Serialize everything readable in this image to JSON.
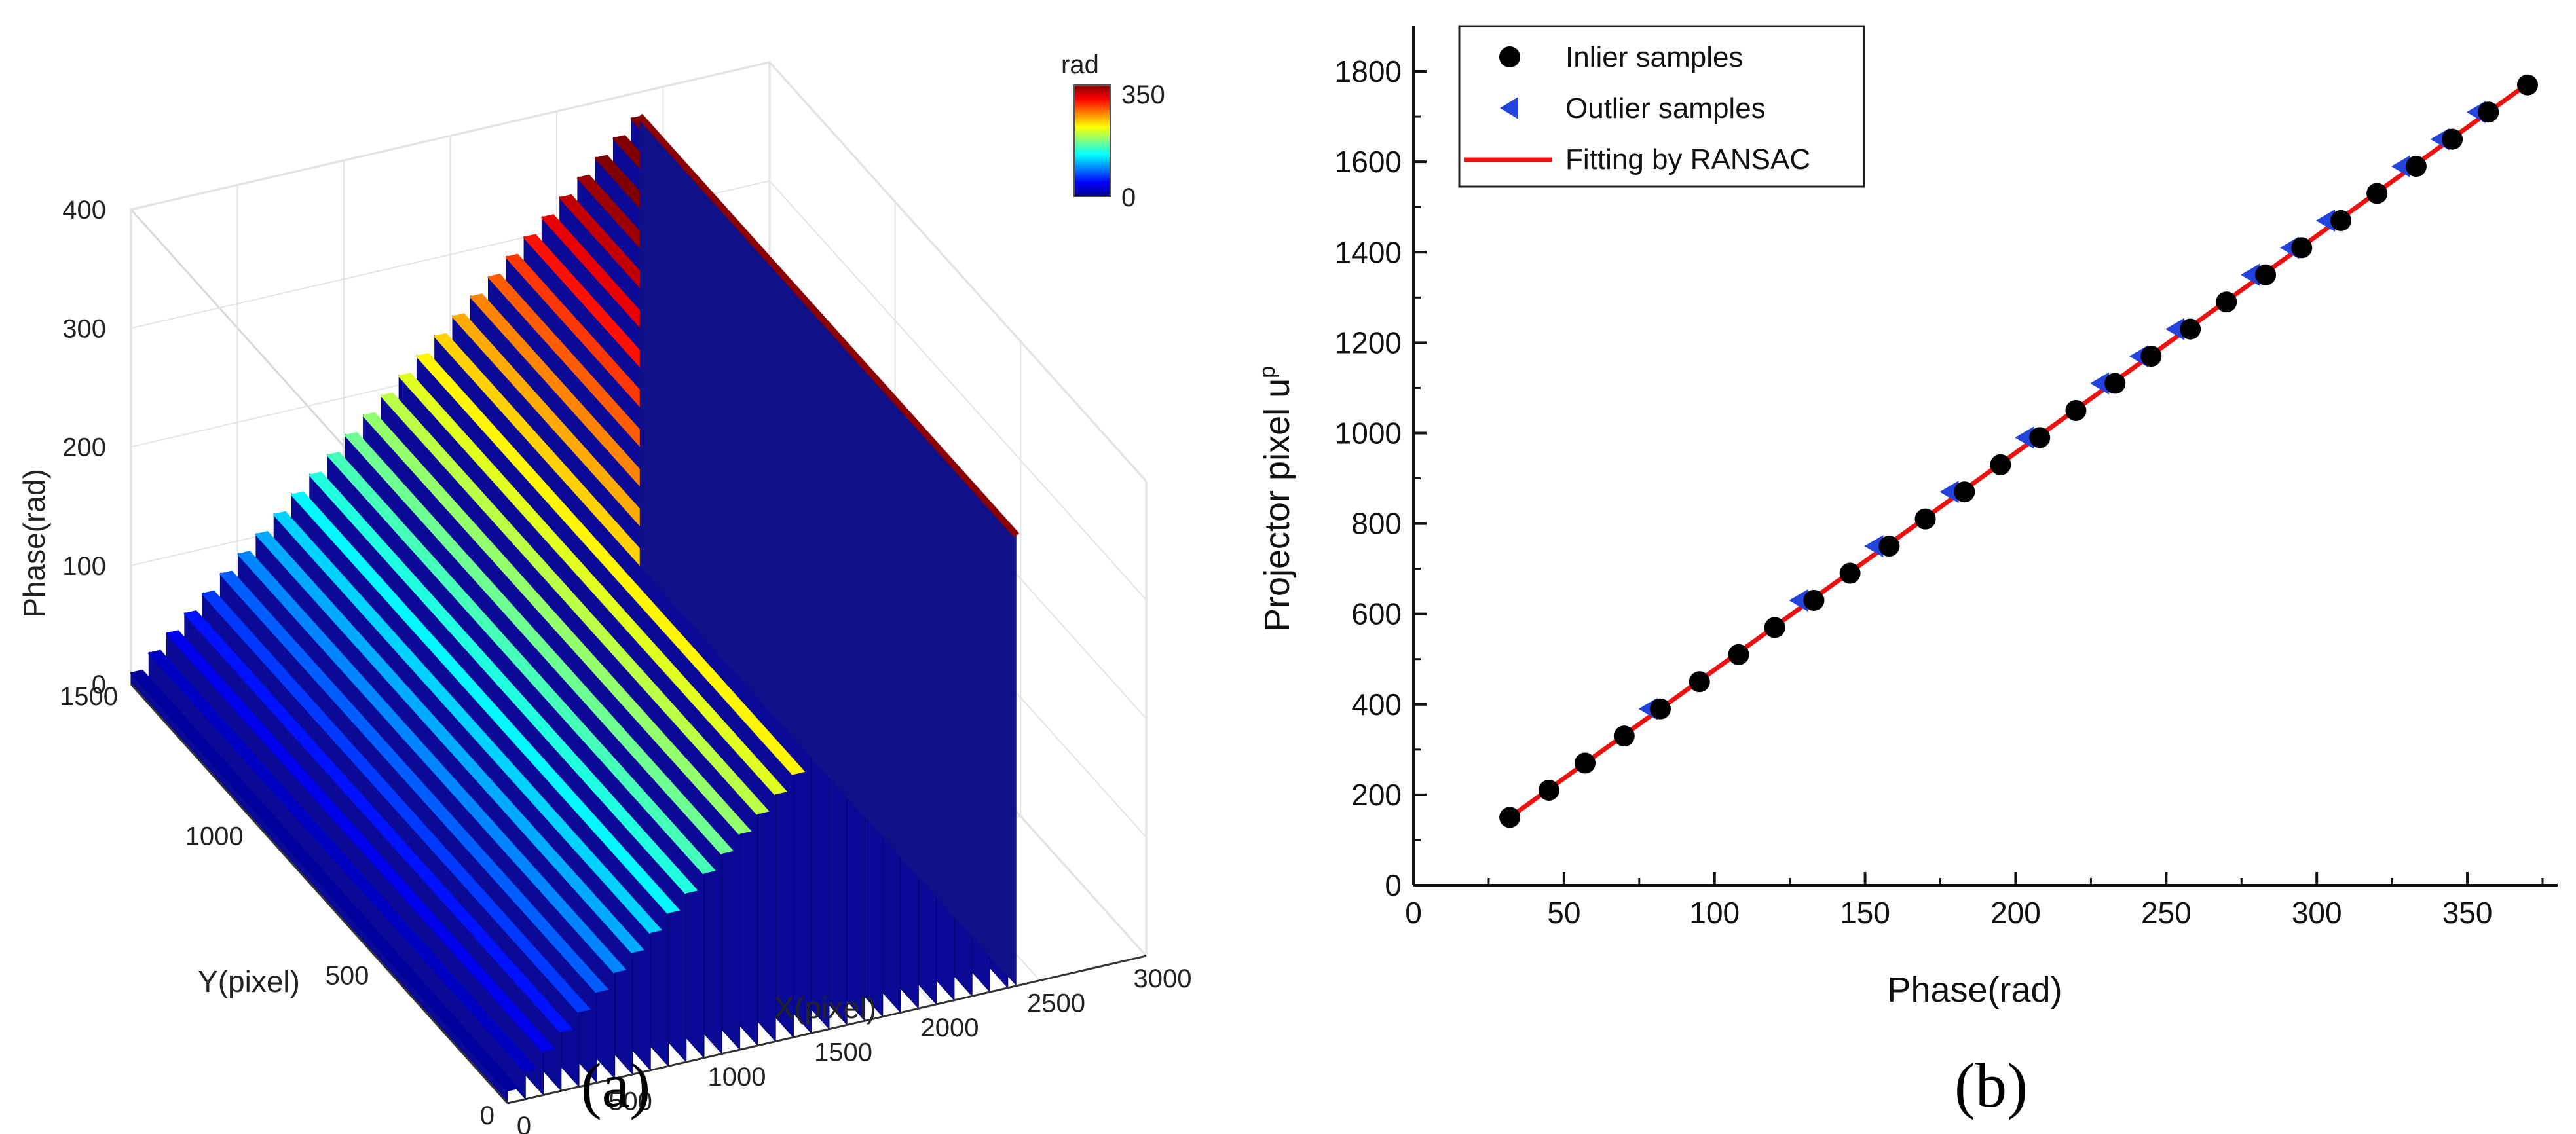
{
  "chart_data": [
    {
      "type": "surface3d",
      "panel_label": "(a)",
      "xlabel": "X(pixel)",
      "ylabel": "Y(pixel)",
      "zlabel": "Phase(rad)",
      "x_ticks": [
        "0",
        "500",
        "1000",
        "1500",
        "2000",
        "2500",
        "3000"
      ],
      "y_ticks": [
        "0",
        "500",
        "1000",
        "1500"
      ],
      "z_ticks": [
        "0",
        "100",
        "200",
        "300",
        "400"
      ],
      "xlim": [
        0,
        3000
      ],
      "ylim": [
        0,
        1500
      ],
      "zlim": [
        0,
        400
      ],
      "colorbar": {
        "title": "rad",
        "min_label": "0",
        "max_label": "350",
        "range": [
          0,
          350
        ]
      },
      "stripes": {
        "count": 29,
        "x_start": 0,
        "x_end": 2350,
        "phase_start": 10,
        "phase_end": 380
      }
    },
    {
      "type": "scatter",
      "panel_label": "(b)",
      "xlabel": "Phase(rad)",
      "ylabel": "Projector pixel u",
      "ylabel_sup": "p",
      "xlim": [
        0,
        380
      ],
      "ylim": [
        0,
        1900
      ],
      "x_ticks": [
        "0",
        "50",
        "100",
        "150",
        "200",
        "250",
        "300",
        "350"
      ],
      "y_ticks": [
        "0",
        "200",
        "400",
        "600",
        "800",
        "1000",
        "1200",
        "1400",
        "1600",
        "1800"
      ],
      "legend": [
        "Inlier samples",
        "Outlier samples",
        "Fitting by RANSAC"
      ],
      "series": [
        {
          "name": "Inlier samples",
          "marker": "circle",
          "color": "#000000",
          "x": [
            32,
            45,
            57,
            70,
            82,
            95,
            108,
            120,
            133,
            145,
            158,
            170,
            183,
            195,
            208,
            220,
            233,
            245,
            258,
            270,
            283,
            295,
            308,
            320,
            333,
            345,
            357,
            370
          ],
          "y": [
            150,
            210,
            270,
            330,
            390,
            450,
            510,
            570,
            630,
            690,
            750,
            810,
            870,
            930,
            990,
            1050,
            1110,
            1170,
            1230,
            1290,
            1350,
            1410,
            1470,
            1530,
            1590,
            1650,
            1710,
            1770
          ]
        },
        {
          "name": "Outlier samples",
          "marker": "left-triangle",
          "color": "#2244dd",
          "x": [
            78,
            128,
            153,
            178,
            203,
            228,
            241,
            253,
            278,
            291,
            303,
            328,
            341,
            353
          ],
          "y": [
            390,
            630,
            750,
            870,
            990,
            1110,
            1170,
            1230,
            1350,
            1410,
            1470,
            1590,
            1650,
            1710
          ]
        },
        {
          "name": "Fitting by RANSAC",
          "type": "line",
          "color": "#ee1111",
          "x": [
            32,
            372
          ],
          "y": [
            150,
            1782
          ]
        }
      ]
    }
  ]
}
